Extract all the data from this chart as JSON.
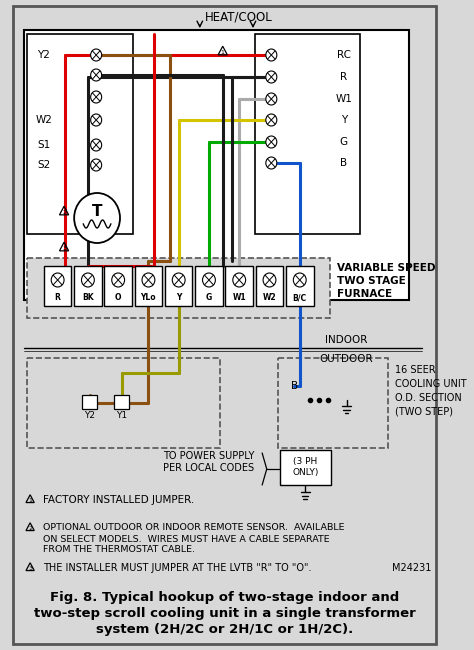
{
  "bg_color": "#d8d8d8",
  "inner_bg": "#d8d8d8",
  "title_line1": "Fig. 8. Typical hookup of two-stage indoor and",
  "title_line2": "two-step scroll cooling unit in a single transformer",
  "title_line3": "system (2H/2C or 2H/1C or 1H/2C).",
  "heat_cool_label": "HEAT/COOL",
  "left_term_labels": [
    "Y2",
    "W2",
    "S1",
    "S2"
  ],
  "right_term_labels": [
    "RC",
    "R",
    "W1",
    "Y",
    "G",
    "B"
  ],
  "furnace_terminals": [
    "R",
    "BK",
    "O",
    "YLo",
    "Y",
    "G",
    "W1",
    "W2",
    "B/C"
  ],
  "furnace_label_lines": [
    "VARIABLE SPEED",
    "TWO STAGE",
    "FURNACE"
  ],
  "cooling_unit_label_lines": [
    "16 SEER",
    "COOLING UNIT",
    "O.D. SECTION",
    "(TWO STEP)"
  ],
  "power_label": "TO POWER SUPPLY\nPER LOCAL CODES",
  "ph_label": "(3 PH\nONLY)",
  "note1": "FACTORY INSTALLED JUMPER.",
  "note2_lines": [
    "OPTIONAL OUTDOOR OR INDOOR REMOTE SENSOR.  AVAILABLE",
    "ON SELECT MODELS.  WIRES MUST HAVE A CABLE SEPARATE",
    "FROM THE THERMOSTAT CABLE."
  ],
  "note3": "THE INSTALLER MUST JUMPER AT THE LVTB \"R\" TO \"O\".",
  "model_num": "M24231",
  "wire_colors": {
    "red": "#dd0000",
    "black": "#1a1a1a",
    "yellow": "#d4c400",
    "green": "#00aa00",
    "gray": "#aaaaaa",
    "blue": "#1155cc",
    "brown": "#8B5010",
    "olive": "#999900",
    "white": "#ffffff"
  }
}
